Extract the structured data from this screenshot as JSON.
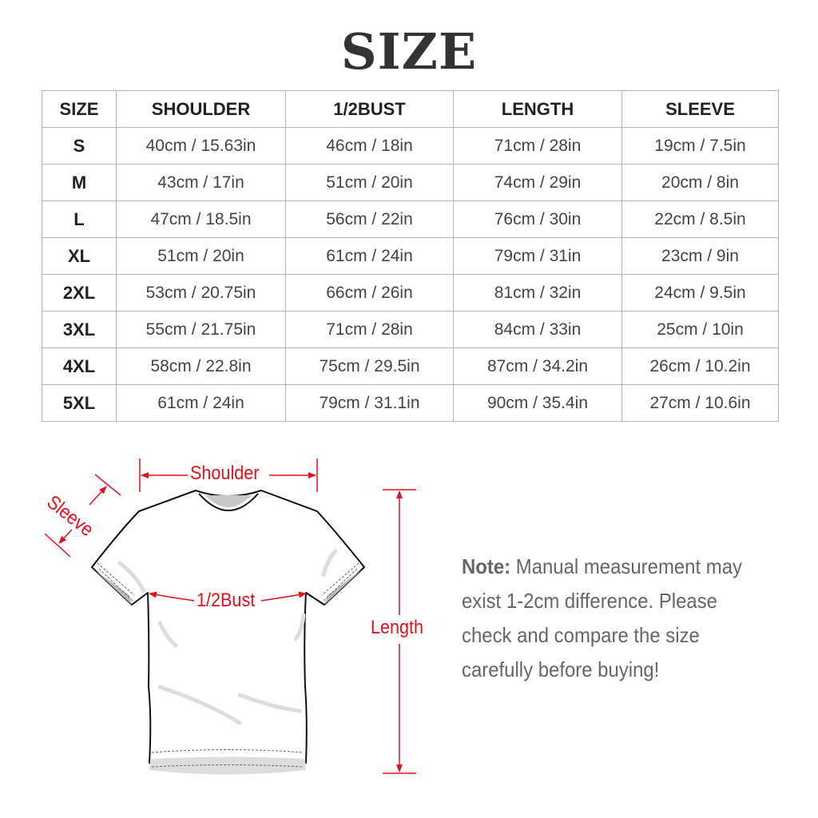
{
  "title": "SIZE",
  "table": {
    "headers": [
      "SIZE",
      "SHOULDER",
      "1/2BUST",
      "LENGTH",
      "SLEEVE"
    ],
    "rows": [
      [
        "S",
        "40cm / 15.63in",
        "46cm / 18in",
        "71cm / 28in",
        "19cm / 7.5in"
      ],
      [
        "M",
        "43cm / 17in",
        "51cm / 20in",
        "74cm / 29in",
        "20cm / 8in"
      ],
      [
        "L",
        "47cm / 18.5in",
        "56cm / 22in",
        "76cm / 30in",
        "22cm / 8.5in"
      ],
      [
        "XL",
        "51cm / 20in",
        "61cm / 24in",
        "79cm / 31in",
        "23cm / 9in"
      ],
      [
        "2XL",
        "53cm / 20.75in",
        "66cm / 26in",
        "81cm / 32in",
        "24cm / 9.5in"
      ],
      [
        "3XL",
        "55cm / 21.75in",
        "71cm / 28in",
        "84cm / 33in",
        "25cm / 10in"
      ],
      [
        "4XL",
        "58cm / 22.8in",
        "75cm / 29.5in",
        "87cm / 34.2in",
        "26cm / 10.2in"
      ],
      [
        "5XL",
        "61cm / 24in",
        "79cm / 31.1in",
        "90cm / 35.4in",
        "27cm / 10.6in"
      ]
    ]
  },
  "diagram": {
    "labels": {
      "shoulder": "Shoulder",
      "sleeve": "Sleeve",
      "bust": "1/2Bust",
      "length": "Length"
    },
    "measure_color": "#e3101e"
  },
  "note": {
    "heading": "Note:",
    "lines": [
      "Manual measurement may",
      "exist 1-2cm difference. Please",
      "check and compare the size",
      "carefully before buying!"
    ]
  }
}
